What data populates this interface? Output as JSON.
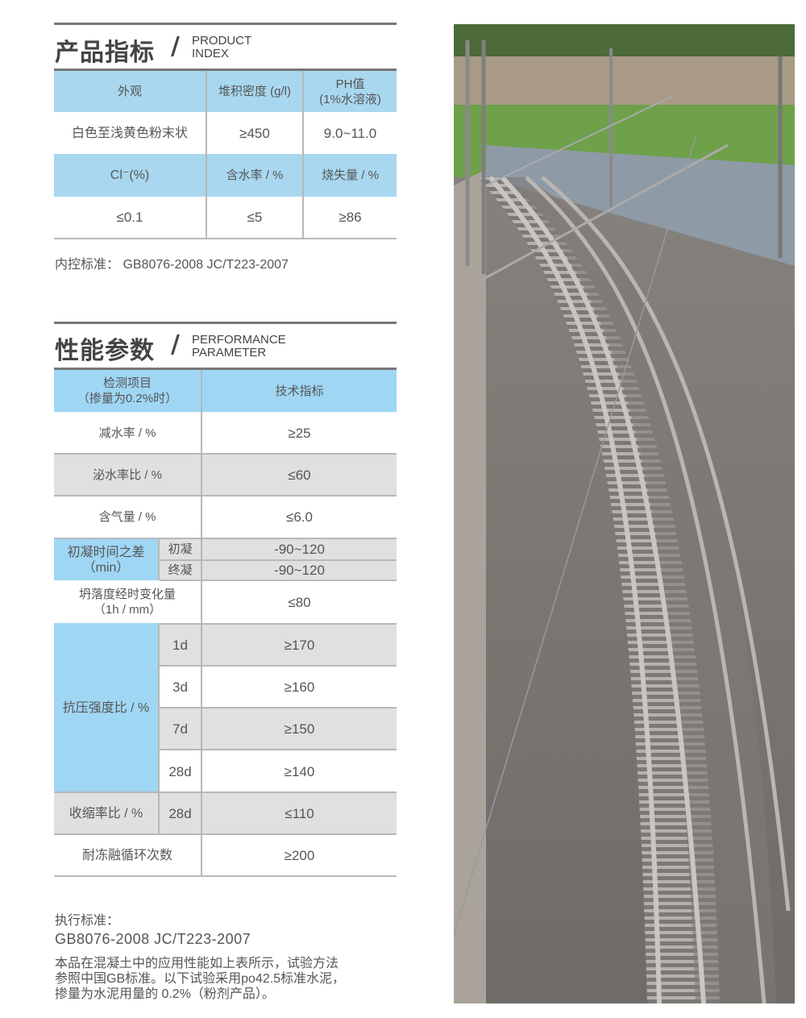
{
  "product_index": {
    "title_cn": "产品指标",
    "slash": "/",
    "title_en_1": "PRODUCT",
    "title_en_2": "INDEX",
    "headers_row1": [
      "外观",
      "堆积密度 (g/l)",
      "PH值",
      "(1%水溶液)"
    ],
    "values_row1": [
      "白色至浅黄色粉末状",
      "≥450",
      "9.0~11.0"
    ],
    "headers_row2": [
      "Cl⁻(%)",
      "含水率 / %",
      "烧失量 / %"
    ],
    "values_row2": [
      "≤0.1",
      "≤5",
      "≥86"
    ],
    "standard": "内控标准： GB8076-2008 JC/T223-2007"
  },
  "performance": {
    "title_cn": "性能参数",
    "slash": "/",
    "title_en_1": "PERFORMANCE",
    "title_en_2": "PARAMETER",
    "header": {
      "item_1": "检测项目",
      "item_2": "（掺量为0.2%时）",
      "spec": "技术指标"
    },
    "rows": [
      {
        "label": "减水率 / %",
        "value": "≥25"
      },
      {
        "label": "泌水率比 / %",
        "value": "≤60"
      },
      {
        "label": "含气量 / %",
        "value": "≤6.0"
      }
    ],
    "setting": {
      "label_1": "初凝时间之差",
      "label_2": "（min）",
      "sub": [
        {
          "label": "初凝",
          "value": "-90~120"
        },
        {
          "label": "终凝",
          "value": "-90~120"
        }
      ]
    },
    "slump": {
      "label_1": "坍落度经时变化量",
      "label_2": "（1h / mm）",
      "value": "≤80"
    },
    "compressive": {
      "label": "抗压强度比 / %",
      "sub": [
        {
          "label": "1d",
          "value": "≥170"
        },
        {
          "label": "3d",
          "value": "≥160"
        },
        {
          "label": "7d",
          "value": "≥150"
        },
        {
          "label": "28d",
          "value": "≥140"
        }
      ]
    },
    "shrink": {
      "label": "收缩率比 / %",
      "sub": "28d",
      "value": "≤110"
    },
    "freeze": {
      "label": "耐冻融循环次数",
      "value": "≥200"
    }
  },
  "footer": {
    "label": "执行标准：",
    "standard": "GB8076-2008 JC/T223-2007",
    "desc_1": "本品在混凝土中的应用性能如上表所示，试验方法",
    "desc_2": "参照中国GB标准。以下试验采用po42.5标准水泥，",
    "desc_3": "掺量为水泥用量的 0.2%（粉剂产品）。"
  },
  "colors": {
    "header_blue": "#a8d7ef",
    "row_gray": "#e0e0e0",
    "rule": "#777777"
  },
  "photo": {
    "subject": "railway-track-photo"
  }
}
